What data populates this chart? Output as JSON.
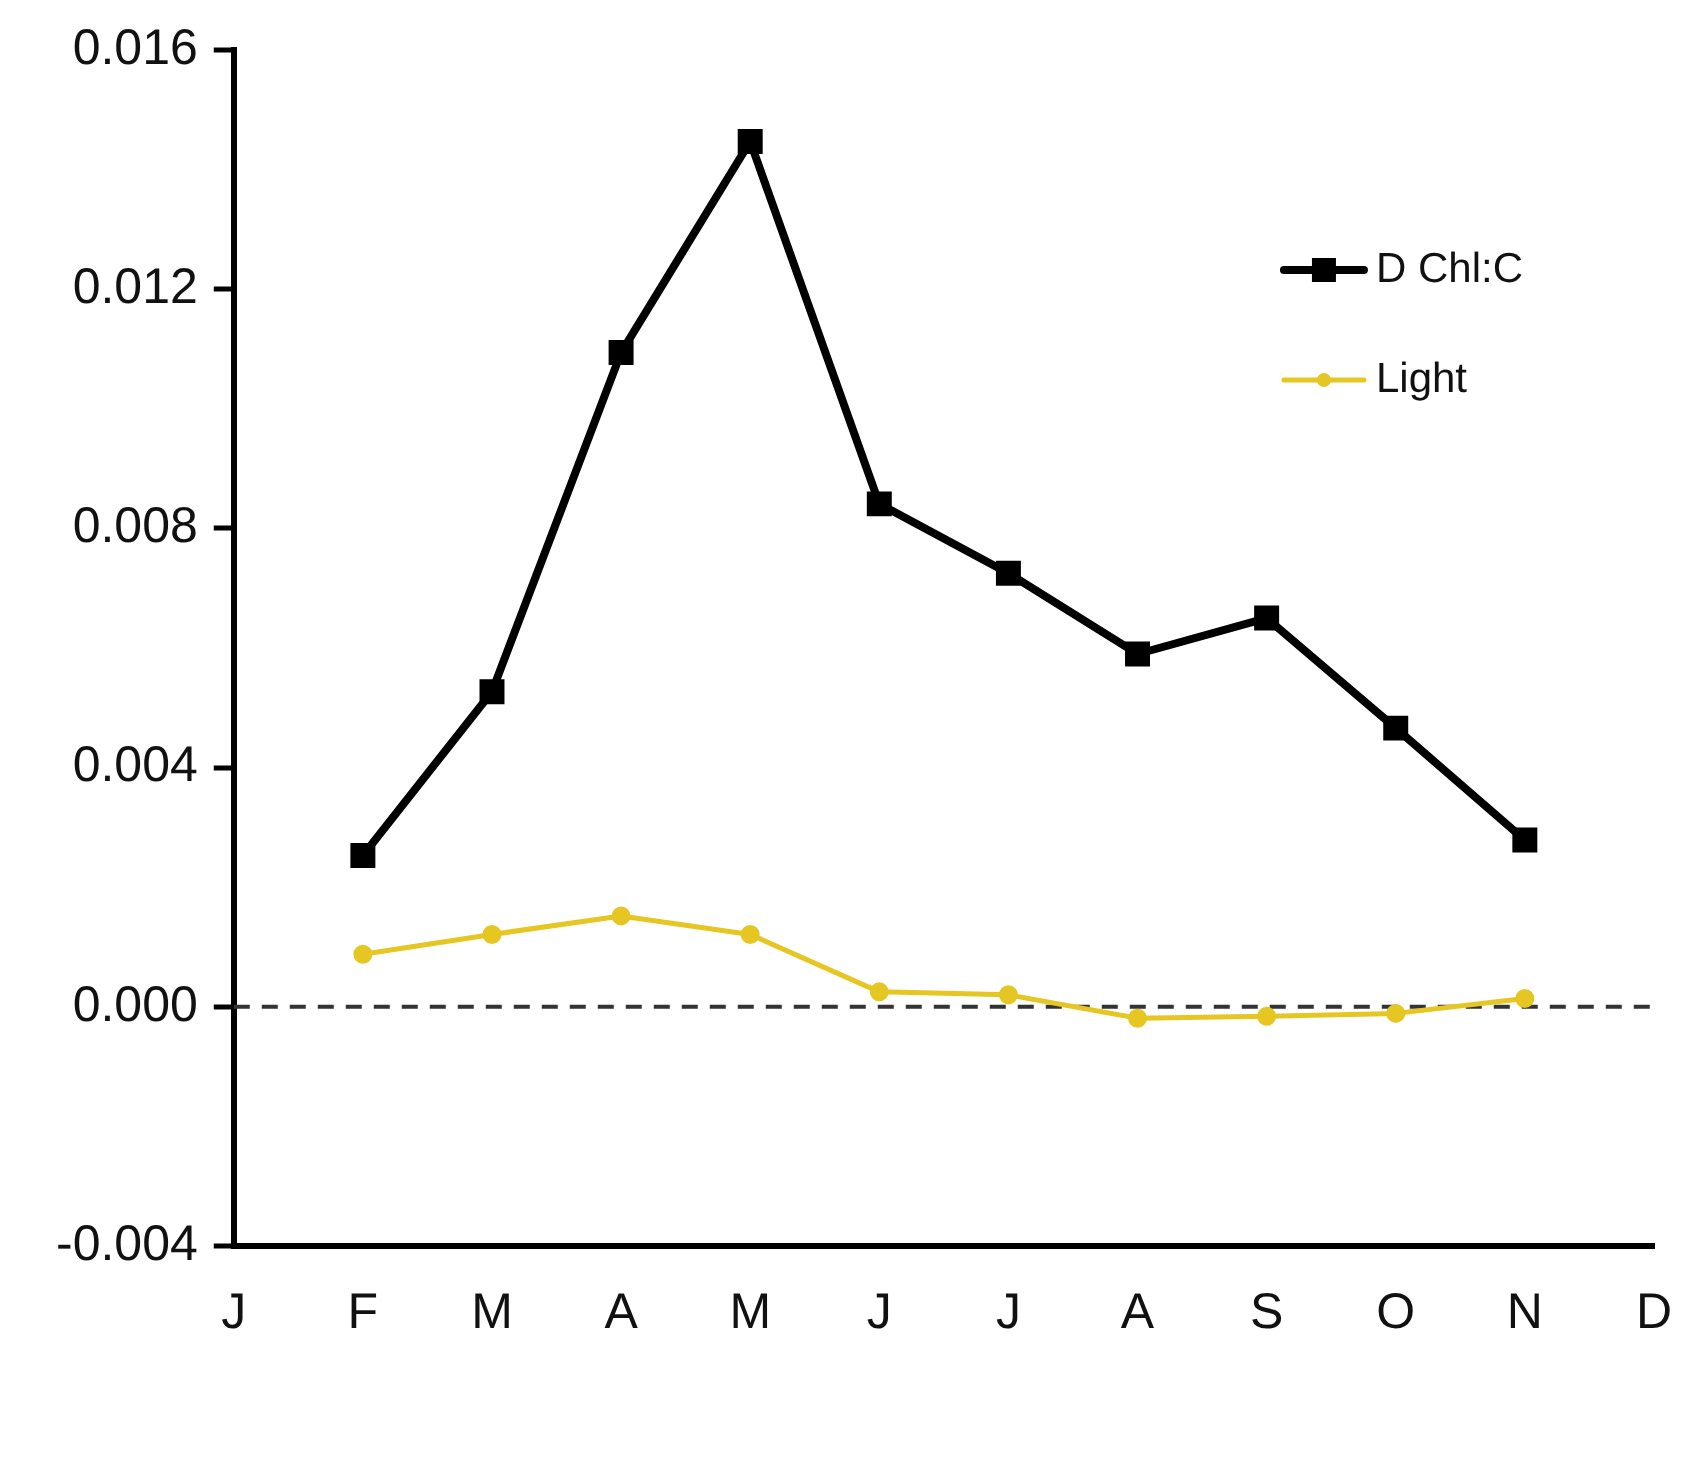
{
  "chart_data": {
    "type": "line",
    "categories": [
      "J",
      "F",
      "M",
      "A",
      "M",
      "J",
      "J",
      "A",
      "S",
      "O",
      "N",
      "D"
    ],
    "series": [
      {
        "name": "D Chl:C",
        "color": "#000000",
        "marker": "square",
        "values": [
          null,
          0.00253,
          0.00527,
          0.01094,
          0.01447,
          0.00841,
          0.00725,
          0.0059,
          0.0065,
          0.00466,
          0.00279,
          null
        ]
      },
      {
        "name": "Light",
        "color": "#e6c622",
        "marker": "circle",
        "values": [
          null,
          0.00088,
          0.00121,
          0.00152,
          0.00121,
          0.00025,
          0.0002,
          -0.00019,
          -0.00016,
          -0.00011,
          0.00014,
          null
        ]
      }
    ],
    "ylim": [
      -0.004,
      0.016
    ],
    "yticks": [
      {
        "value": -0.004,
        "label": "-0.004"
      },
      {
        "value": 0,
        "label": "0.000"
      },
      {
        "value": 0.004,
        "label": "0.004"
      },
      {
        "value": 0.008,
        "label": "0.008"
      },
      {
        "value": 0.012,
        "label": "0.012"
      },
      {
        "value": 0.016,
        "label": "0.016"
      }
    ],
    "ref_lines": [
      {
        "axis": "y",
        "value": 0,
        "color": "#333333",
        "line_style": "dashed"
      }
    ],
    "grid": false,
    "legend": "top right",
    "line_style": "solid"
  }
}
